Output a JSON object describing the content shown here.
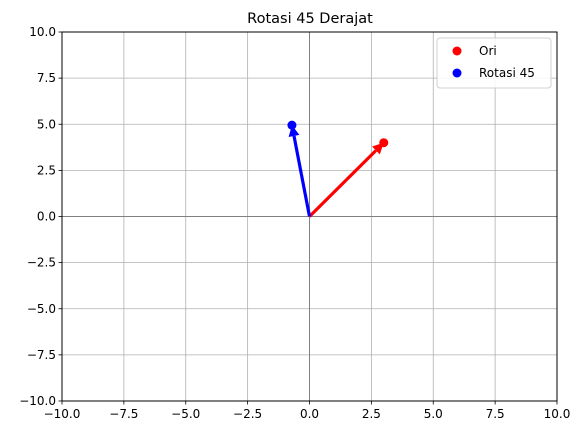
{
  "chart_data": {
    "type": "scatter",
    "title": "Rotasi 45 Derajat",
    "xlabel": "",
    "ylabel": "",
    "xlim": [
      -10,
      10
    ],
    "ylim": [
      -10,
      10
    ],
    "xticks": [
      -10,
      -7.5,
      -5,
      -2.5,
      0,
      2.5,
      5,
      7.5,
      10
    ],
    "yticks": [
      -10,
      -7.5,
      -5,
      -2.5,
      0,
      2.5,
      5,
      7.5,
      10
    ],
    "xtick_labels": [
      "−10.0",
      "−7.5",
      "−5.0",
      "−2.5",
      "0.0",
      "2.5",
      "5.0",
      "7.5",
      "10.0"
    ],
    "ytick_labels": [
      "−10.0",
      "−7.5",
      "−5.0",
      "−2.5",
      "0.0",
      "2.5",
      "5.0",
      "7.5",
      "10.0"
    ],
    "grid": true,
    "axis_lines": {
      "x": 0,
      "y": 0
    },
    "legend_position": "top-right",
    "series": [
      {
        "name": "Ori",
        "color": "#ff0000",
        "points": [
          [
            3,
            4
          ]
        ],
        "vector_from": [
          0,
          0
        ],
        "vector_to": [
          3,
          4
        ]
      },
      {
        "name": "Rotasi 45",
        "color": "#0000ff",
        "points": [
          [
            -0.71,
            4.95
          ]
        ],
        "vector_from": [
          0,
          0
        ],
        "vector_to": [
          -0.71,
          4.95
        ]
      }
    ]
  }
}
